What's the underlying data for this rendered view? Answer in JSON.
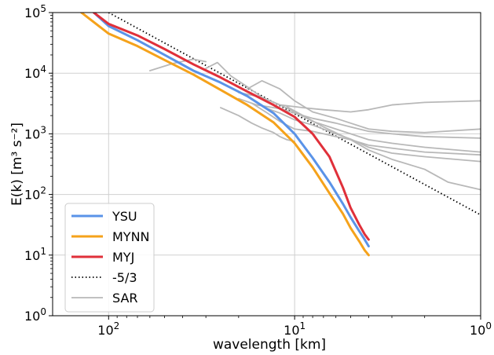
{
  "chart_data": {
    "type": "line",
    "xlabel": "wavelength [km]",
    "ylabel": "E(k) [m³ s⁻²]",
    "xscale": "log",
    "yscale": "log",
    "x_reversed": true,
    "xlim": [
      200,
      1
    ],
    "ylim": [
      1,
      100000
    ],
    "grid": true,
    "legend_position": "lower-left",
    "x_ticks": [
      {
        "value": 100,
        "base": "10",
        "exp": "2"
      },
      {
        "value": 10,
        "base": "10",
        "exp": "1"
      },
      {
        "value": 1,
        "base": "10",
        "exp": "0"
      }
    ],
    "y_ticks": [
      {
        "value": 1,
        "base": "10",
        "exp": "0"
      },
      {
        "value": 10,
        "base": "10",
        "exp": "1"
      },
      {
        "value": 100,
        "base": "10",
        "exp": "2"
      },
      {
        "value": 1000,
        "base": "10",
        "exp": "3"
      },
      {
        "value": 10000,
        "base": "10",
        "exp": "4"
      },
      {
        "value": 100000,
        "base": "10",
        "exp": "5"
      }
    ],
    "series": [
      {
        "name": "YSU",
        "color": "#5a93e8",
        "style": "solid",
        "width": 3,
        "legend": true,
        "points": [
          [
            120,
            100000
          ],
          [
            100,
            60000
          ],
          [
            70,
            35000
          ],
          [
            50,
            20000
          ],
          [
            35,
            11000
          ],
          [
            25,
            7000
          ],
          [
            18,
            4200
          ],
          [
            13,
            2200
          ],
          [
            10,
            1000
          ],
          [
            8,
            400
          ],
          [
            6.5,
            160
          ],
          [
            5.5,
            70
          ],
          [
            5,
            42
          ],
          [
            4.5,
            25
          ],
          [
            4.2,
            18
          ],
          [
            4,
            14
          ]
        ]
      },
      {
        "name": "MYNN",
        "color": "#f5a21b",
        "style": "solid",
        "width": 3,
        "legend": true,
        "points": [
          [
            140,
            100000
          ],
          [
            100,
            45000
          ],
          [
            70,
            28000
          ],
          [
            50,
            16500
          ],
          [
            35,
            9500
          ],
          [
            25,
            5300
          ],
          [
            18,
            3000
          ],
          [
            13,
            1550
          ],
          [
            10,
            700
          ],
          [
            8,
            280
          ],
          [
            6.5,
            105
          ],
          [
            5.5,
            48
          ],
          [
            5,
            28
          ],
          [
            4.5,
            17
          ],
          [
            4.2,
            12
          ],
          [
            4,
            10
          ]
        ]
      },
      {
        "name": "MYJ",
        "color": "#e0303a",
        "style": "solid",
        "width": 3,
        "legend": true,
        "points": [
          [
            120,
            100000
          ],
          [
            100,
            65000
          ],
          [
            70,
            42000
          ],
          [
            50,
            25000
          ],
          [
            35,
            14000
          ],
          [
            25,
            8500
          ],
          [
            18,
            5000
          ],
          [
            13,
            3000
          ],
          [
            10,
            1900
          ],
          [
            8,
            1000
          ],
          [
            6.5,
            420
          ],
          [
            5.5,
            130
          ],
          [
            5,
            60
          ],
          [
            4.5,
            32
          ],
          [
            4.2,
            22
          ],
          [
            4,
            18
          ]
        ]
      },
      {
        "name": "-5/3",
        "color": "#000000",
        "style": "dotted",
        "width": 1.8,
        "legend": true,
        "points": [
          [
            100,
            100000
          ],
          [
            1,
            46
          ]
        ]
      },
      {
        "name": "SAR",
        "color": "#b8b8b8",
        "style": "solid",
        "width": 1.8,
        "legend": true,
        "points": [
          [
            30,
            12000
          ],
          [
            26,
            15000
          ],
          [
            22,
            9000
          ],
          [
            18,
            6000
          ],
          [
            15,
            4000
          ],
          [
            12,
            3000
          ],
          [
            9,
            2700
          ],
          [
            7,
            2500
          ],
          [
            5,
            2300
          ],
          [
            4,
            2500
          ],
          [
            3,
            3000
          ],
          [
            2,
            3300
          ],
          [
            1,
            3500
          ]
        ]
      },
      {
        "name": "SAR",
        "color": "#b8b8b8",
        "style": "solid",
        "width": 1.8,
        "legend": false,
        "points": [
          [
            18,
            5500
          ],
          [
            15,
            7500
          ],
          [
            12,
            5500
          ],
          [
            10,
            3500
          ],
          [
            8,
            2300
          ],
          [
            6,
            1800
          ],
          [
            5,
            1500
          ],
          [
            4,
            1200
          ],
          [
            3,
            1100
          ],
          [
            2,
            1050
          ],
          [
            1,
            1200
          ]
        ]
      },
      {
        "name": "SAR",
        "color": "#b8b8b8",
        "style": "solid",
        "width": 1.8,
        "legend": false,
        "points": [
          [
            20,
            3800
          ],
          [
            16,
            3000
          ],
          [
            12,
            2600
          ],
          [
            10,
            2200
          ],
          [
            8,
            1800
          ],
          [
            6,
            1500
          ],
          [
            5,
            1300
          ],
          [
            4,
            1100
          ],
          [
            3,
            1000
          ],
          [
            2,
            900
          ],
          [
            1,
            850
          ]
        ]
      },
      {
        "name": "SAR",
        "color": "#b8b8b8",
        "style": "solid",
        "width": 1.8,
        "legend": false,
        "points": [
          [
            20,
            4800
          ],
          [
            15,
            4000
          ],
          [
            12,
            3000
          ],
          [
            10,
            2300
          ],
          [
            8,
            1600
          ],
          [
            6,
            1200
          ],
          [
            5,
            1000
          ],
          [
            4,
            800
          ],
          [
            3,
            700
          ],
          [
            2,
            600
          ],
          [
            1,
            500
          ]
        ]
      },
      {
        "name": "SAR",
        "color": "#b8b8b8",
        "style": "solid",
        "width": 1.8,
        "legend": false,
        "points": [
          [
            17,
            3200
          ],
          [
            14,
            2200
          ],
          [
            12,
            1600
          ],
          [
            10,
            1200
          ],
          [
            8,
            1100
          ],
          [
            6,
            900
          ],
          [
            5,
            800
          ],
          [
            4,
            650
          ],
          [
            3,
            580
          ],
          [
            2,
            500
          ],
          [
            1,
            450
          ]
        ]
      },
      {
        "name": "SAR",
        "color": "#b8b8b8",
        "style": "solid",
        "width": 1.8,
        "legend": false,
        "points": [
          [
            14,
            2600
          ],
          [
            12,
            2200
          ],
          [
            10,
            1700
          ],
          [
            8,
            1400
          ],
          [
            6,
            1000
          ],
          [
            5,
            820
          ],
          [
            4,
            600
          ],
          [
            3,
            480
          ],
          [
            2,
            420
          ],
          [
            1,
            350
          ]
        ]
      },
      {
        "name": "SAR",
        "color": "#b8b8b8",
        "style": "solid",
        "width": 1.8,
        "legend": false,
        "points": [
          [
            11,
            2800
          ],
          [
            9,
            2000
          ],
          [
            7,
            1300
          ],
          [
            5,
            800
          ],
          [
            4,
            540
          ],
          [
            3,
            380
          ],
          [
            2,
            260
          ],
          [
            1.5,
            160
          ],
          [
            1,
            120
          ]
        ]
      },
      {
        "name": "SAR",
        "color": "#b8b8b8",
        "style": "solid",
        "width": 1.8,
        "legend": false,
        "points": [
          [
            25,
            2700
          ],
          [
            20,
            2000
          ],
          [
            17,
            1500
          ],
          [
            15,
            1250
          ],
          [
            13,
            1050
          ],
          [
            12,
            900
          ],
          [
            11,
            800
          ],
          [
            10,
            750
          ]
        ]
      },
      {
        "name": "SAR",
        "color": "#b8b8b8",
        "style": "solid",
        "width": 1.8,
        "legend": false,
        "points": [
          [
            60,
            11000
          ],
          [
            45,
            14500
          ],
          [
            35,
            17000
          ],
          [
            30,
            15500
          ]
        ]
      }
    ]
  }
}
